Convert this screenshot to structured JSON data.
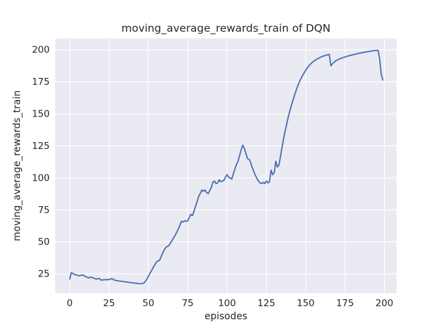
{
  "figure": {
    "colors": {
      "figure_bg": "#ffffff",
      "axes_bg": "#eaeaf2",
      "grid": "#ffffff",
      "line": "#4c72b0",
      "text": "#262626"
    }
  },
  "chart_data": {
    "type": "line",
    "title": "moving_average_rewards_train of DQN",
    "xlabel": "episodes",
    "ylabel": "moving_average_rewards_train",
    "grid": true,
    "legend": "none",
    "xlim": [
      -9.2,
      207.8
    ],
    "ylim": [
      10.0,
      208.9
    ],
    "xticks": [
      0,
      25,
      50,
      75,
      100,
      125,
      150,
      175,
      200
    ],
    "yticks": [
      25,
      50,
      75,
      100,
      125,
      150,
      175,
      200
    ],
    "series": [
      {
        "name": "moving_average_rewards_train",
        "color": "#4c72b0",
        "x_start": 0,
        "x_step": 1,
        "values": [
          21.0,
          25.9,
          25.3,
          24.6,
          24.2,
          23.8,
          23.5,
          23.8,
          24.2,
          23.6,
          23.0,
          22.4,
          21.9,
          22.2,
          22.4,
          21.8,
          21.3,
          20.9,
          21.2,
          21.3,
          20.1,
          20.3,
          20.5,
          20.4,
          20.6,
          20.5,
          21.0,
          21.3,
          20.3,
          20.0,
          19.7,
          19.5,
          19.4,
          19.2,
          19.0,
          18.9,
          18.7,
          18.5,
          18.3,
          18.2,
          18.0,
          17.9,
          17.7,
          17.5,
          17.4,
          17.3,
          17.4,
          17.8,
          19.0,
          20.8,
          23.0,
          25.5,
          27.5,
          29.8,
          32.0,
          34.0,
          35.0,
          35.5,
          38.0,
          41.0,
          43.5,
          45.5,
          46.5,
          47.0,
          49.0,
          51.0,
          53.0,
          55.0,
          57.5,
          60.0,
          63.0,
          66.0,
          65.5,
          66.5,
          66.0,
          66.5,
          69.0,
          71.5,
          70.5,
          74.0,
          78.0,
          81.5,
          85.5,
          88.0,
          90.5,
          89.5,
          90.5,
          88.5,
          87.8,
          90.0,
          92.5,
          96.5,
          97.5,
          95.5,
          96.0,
          98.5,
          97.0,
          97.5,
          98.0,
          100.5,
          102.5,
          100.5,
          100.0,
          99.0,
          103.0,
          107.0,
          110.5,
          113.0,
          117.5,
          122.0,
          125.5,
          123.0,
          119.0,
          115.0,
          114.5,
          112.0,
          108.0,
          105.0,
          102.0,
          99.5,
          97.5,
          96.0,
          95.5,
          96.5,
          95.5,
          97.5,
          96.0,
          97.0,
          106.0,
          102.5,
          104.0,
          113.0,
          108.5,
          110.0,
          117.0,
          124.0,
          131.0,
          137.0,
          142.5,
          148.0,
          152.5,
          157.0,
          161.0,
          165.0,
          168.5,
          172.0,
          175.0,
          177.5,
          180.0,
          182.0,
          184.0,
          185.8,
          187.4,
          188.8,
          190.0,
          191.0,
          191.8,
          192.6,
          193.3,
          194.0,
          194.5,
          195.0,
          195.4,
          195.8,
          196.1,
          196.4,
          187.5,
          189.0,
          190.3,
          191.3,
          192.0,
          192.6,
          193.1,
          193.6,
          194.0,
          194.4,
          194.8,
          195.2,
          195.5,
          195.8,
          196.1,
          196.4,
          196.7,
          197.0,
          197.3,
          197.5,
          197.8,
          198.0,
          198.2,
          198.5,
          198.7,
          198.9,
          199.1,
          199.3,
          199.4,
          199.5,
          199.6,
          193.0,
          181.0,
          176.5
        ]
      }
    ]
  }
}
